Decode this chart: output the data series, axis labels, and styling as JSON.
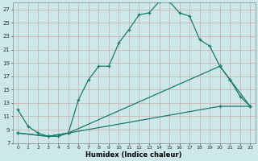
{
  "xlabel": "Humidex (Indice chaleur)",
  "background_color": "#cce8e8",
  "grid_color": "#aacccc",
  "line_color": "#1a7a6a",
  "xlim": [
    -0.5,
    23.5
  ],
  "ylim": [
    7,
    28
  ],
  "xticks": [
    0,
    1,
    2,
    3,
    4,
    5,
    6,
    7,
    8,
    9,
    10,
    11,
    12,
    13,
    14,
    15,
    16,
    17,
    18,
    19,
    20,
    21,
    22,
    23
  ],
  "yticks": [
    7,
    9,
    11,
    13,
    15,
    17,
    19,
    21,
    23,
    25,
    27
  ],
  "line1_x": [
    0,
    1,
    2,
    3,
    4,
    5,
    6,
    7,
    8,
    9,
    10,
    11,
    12,
    13,
    14,
    15,
    16,
    17,
    18,
    19,
    20,
    21,
    22,
    23
  ],
  "line1_y": [
    12,
    9.5,
    8.5,
    8.0,
    8.0,
    8.5,
    13.5,
    16.5,
    18.5,
    18.5,
    22.0,
    24.0,
    26.2,
    26.5,
    28.2,
    28.2,
    26.5,
    26.0,
    22.5,
    21.5,
    18.5,
    16.5,
    14.0,
    12.5
  ],
  "line2_x": [
    0,
    3,
    5,
    20,
    21,
    23
  ],
  "line2_y": [
    8.5,
    8.0,
    8.5,
    18.5,
    16.5,
    12.5
  ],
  "line3_x": [
    0,
    3,
    5,
    20,
    23
  ],
  "line3_y": [
    8.5,
    8.0,
    8.5,
    12.5,
    12.5
  ]
}
